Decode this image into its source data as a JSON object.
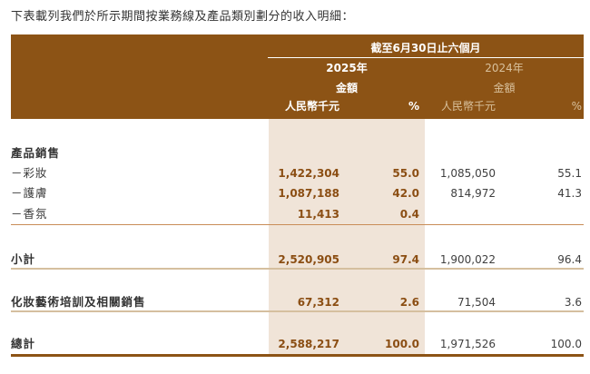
{
  "caption": "下表載列我們於所示期間按業務線及產品類別劃分的收入明細：",
  "table": {
    "header": {
      "period": "截至6月30日止六個月",
      "groups": [
        {
          "year": "2025年",
          "amount_label": "金額",
          "unit": "人民幣千元",
          "percent": "%"
        },
        {
          "year": "2024年",
          "amount_label": "金額",
          "unit": "人民幣千元",
          "percent": "%"
        }
      ]
    },
    "section_title": "產品銷售",
    "rows": [
      {
        "label": "－彩妝",
        "amount_2025": "1,422,304",
        "percent_2025": "55.0",
        "amount_2024": "1,085,050",
        "percent_2024": "55.1"
      },
      {
        "label": "－護膚",
        "amount_2025": "1,087,188",
        "percent_2025": "42.0",
        "amount_2024": "814,972",
        "percent_2024": "41.3"
      },
      {
        "label": "－香氛",
        "amount_2025": "11,413",
        "percent_2025": "0.4",
        "amount_2024": "",
        "percent_2024": ""
      }
    ],
    "subtotal_row": {
      "label": "小計",
      "amount_2025": "2,520,905",
      "percent_2025": "97.4",
      "amount_2024": "1,900,022",
      "percent_2024": "96.4"
    },
    "training_row": {
      "label": "化妝藝術培訓及相關銷售",
      "amount_2025": "67,312",
      "percent_2025": "2.6",
      "amount_2024": "71,504",
      "percent_2024": "3.6"
    },
    "total_row": {
      "label": "總計",
      "amount_2025": "2,588,217",
      "percent_2025": "100.0",
      "amount_2024": "1,971,526",
      "percent_2024": "100.0"
    }
  },
  "colors": {
    "header_bg": "#8C5315",
    "highlight_column_bg": "#F0E4D8",
    "value_2025_text": "#8B4E13",
    "value_2024_text": "#3F3F3F",
    "header_muted_text": "#D8C09C",
    "rule_light": "#C98C57",
    "rule_tan": "#D5BF9F",
    "rule_dark": "#8C5315"
  }
}
